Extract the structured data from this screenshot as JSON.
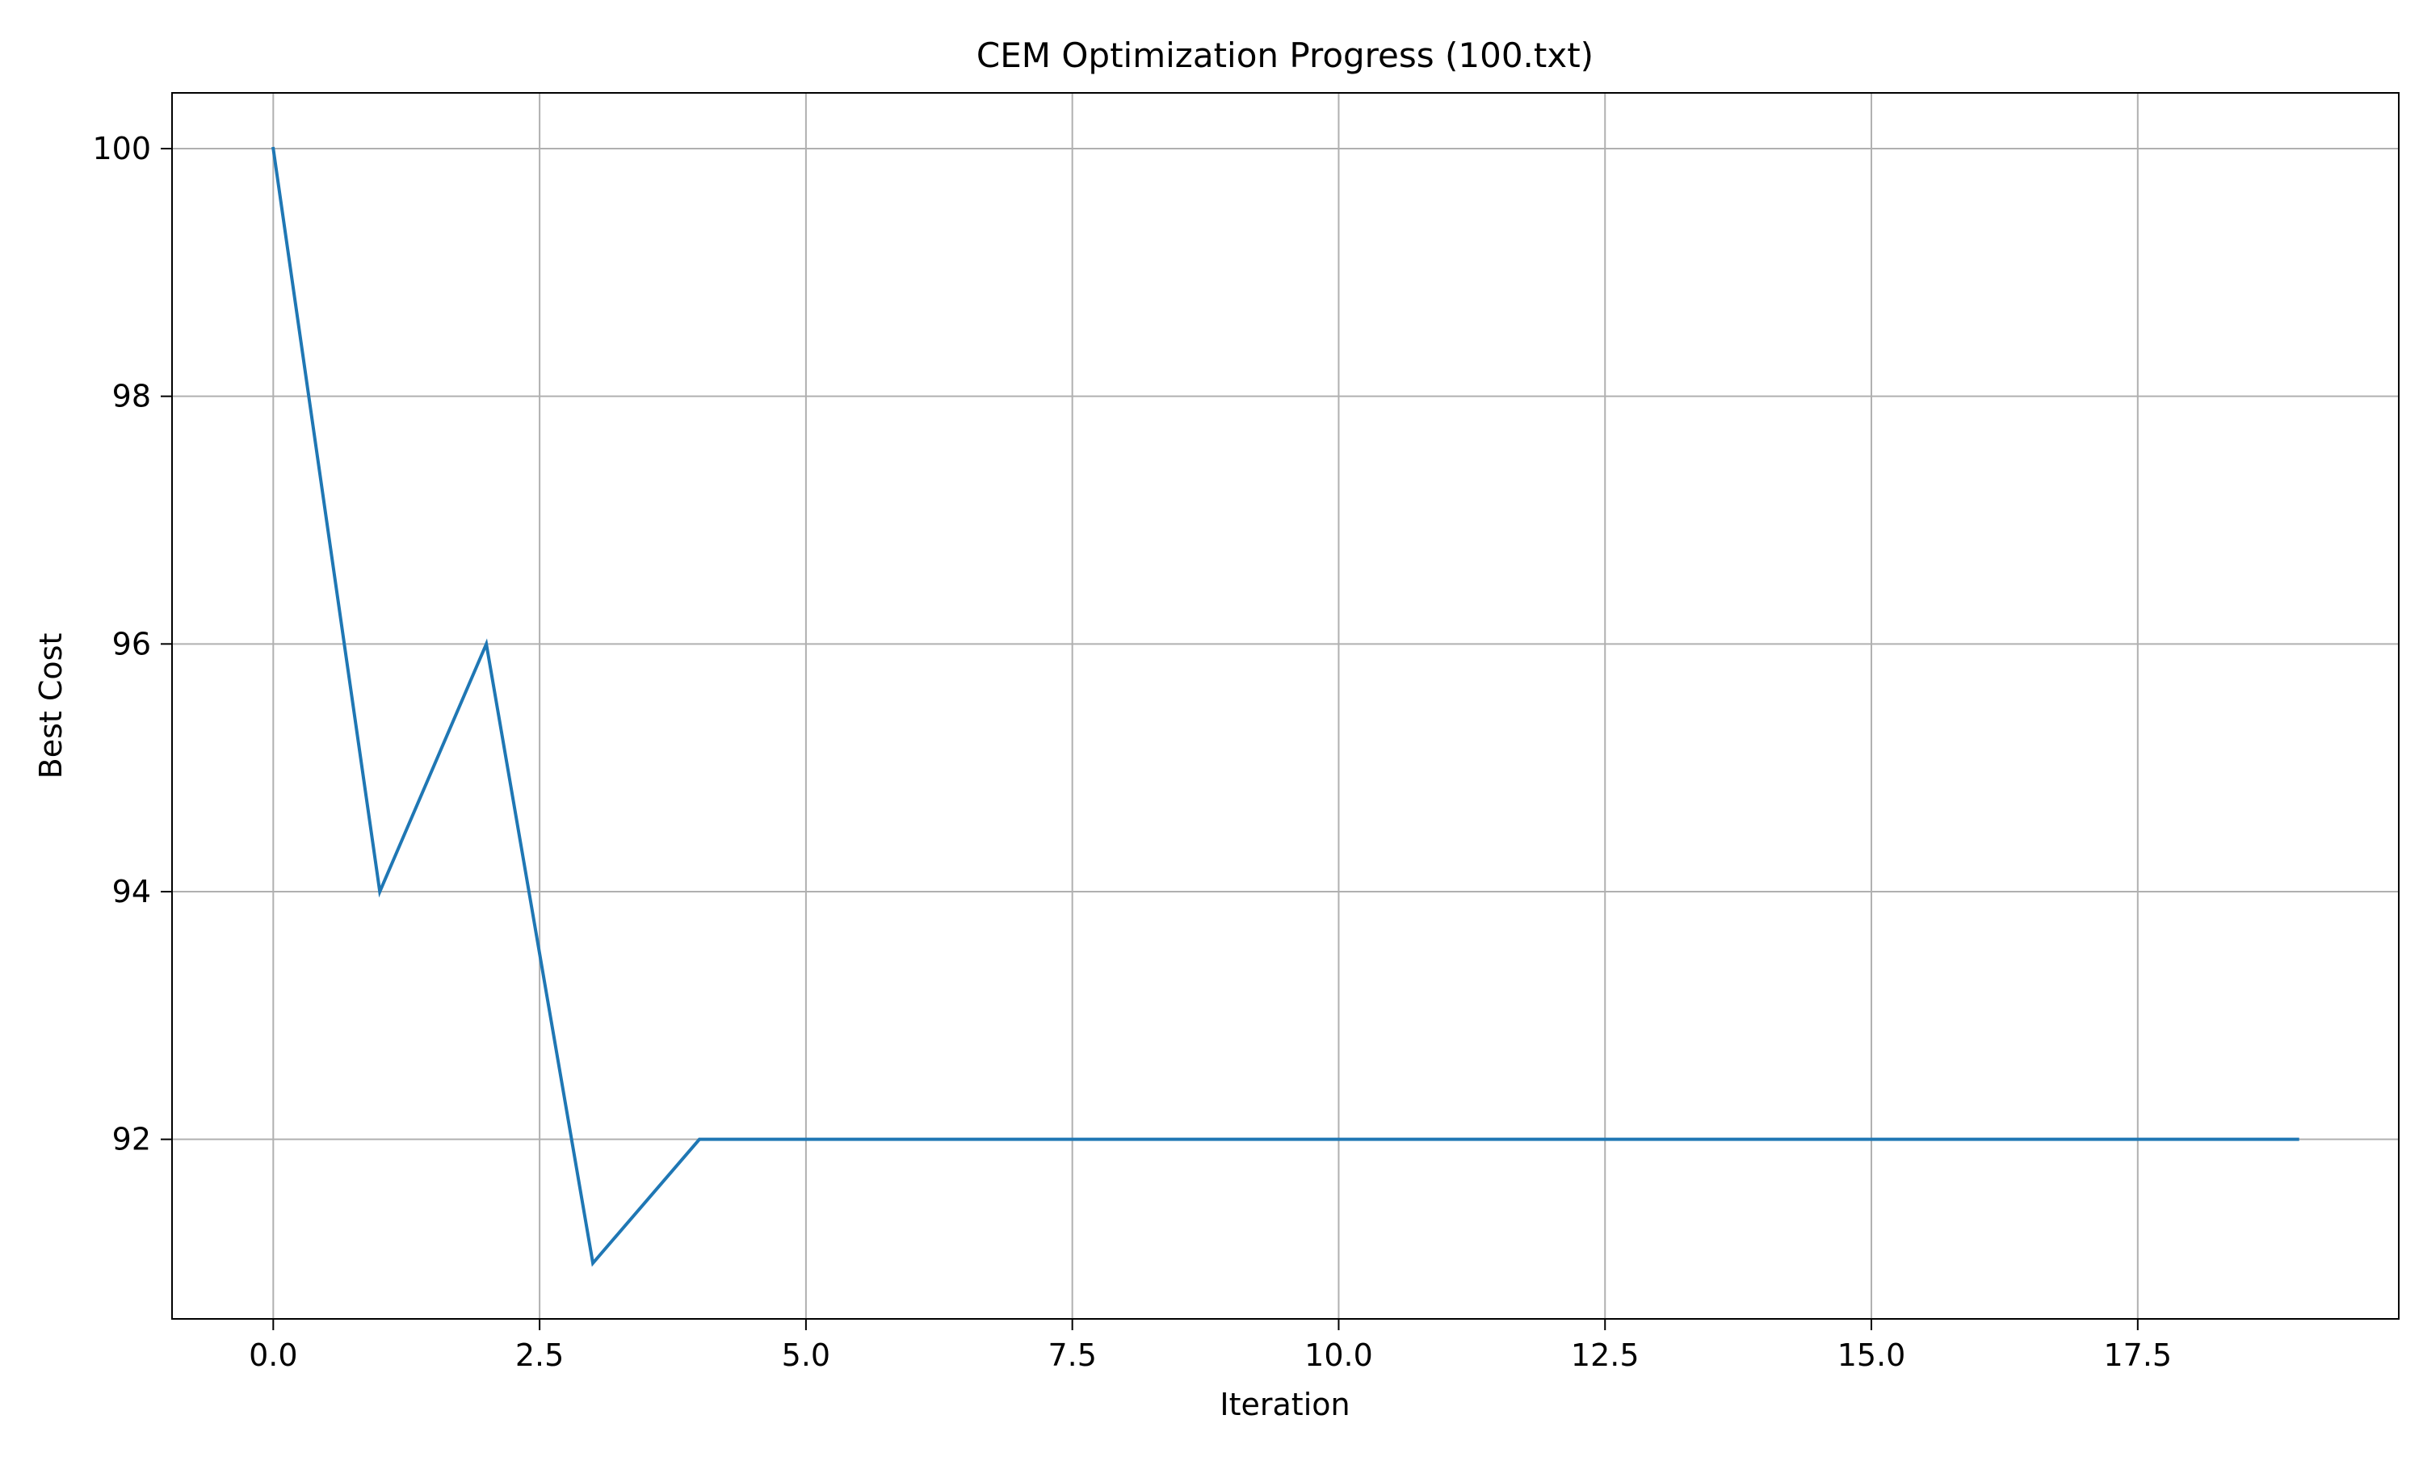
{
  "chart_data": {
    "type": "line",
    "title": "CEM Optimization Progress (100.txt)",
    "xlabel": "Iteration",
    "ylabel": "Best Cost",
    "x": [
      0,
      1,
      2,
      3,
      4,
      5,
      6,
      7,
      8,
      9,
      10,
      11,
      12,
      13,
      14,
      15,
      16,
      17,
      18,
      19
    ],
    "series": [
      {
        "values": [
          100,
          94,
          96,
          91,
          92,
          92,
          92,
          92,
          92,
          92,
          92,
          92,
          92,
          92,
          92,
          92,
          92,
          92,
          92,
          92
        ],
        "color": "#1f77b4"
      }
    ],
    "xlim": [
      -0.95,
      19.95
    ],
    "ylim": [
      90.55,
      100.45
    ],
    "xticks": [
      0.0,
      2.5,
      5.0,
      7.5,
      10.0,
      12.5,
      15.0,
      17.5
    ],
    "xtick_labels": [
      "0.0",
      "2.5",
      "5.0",
      "7.5",
      "10.0",
      "12.5",
      "15.0",
      "17.5"
    ],
    "yticks": [
      92,
      94,
      96,
      98,
      100
    ],
    "ytick_labels": [
      "92",
      "94",
      "96",
      "98",
      "100"
    ],
    "grid": true,
    "grid_color": "#b0b0b0",
    "legend": "none"
  }
}
